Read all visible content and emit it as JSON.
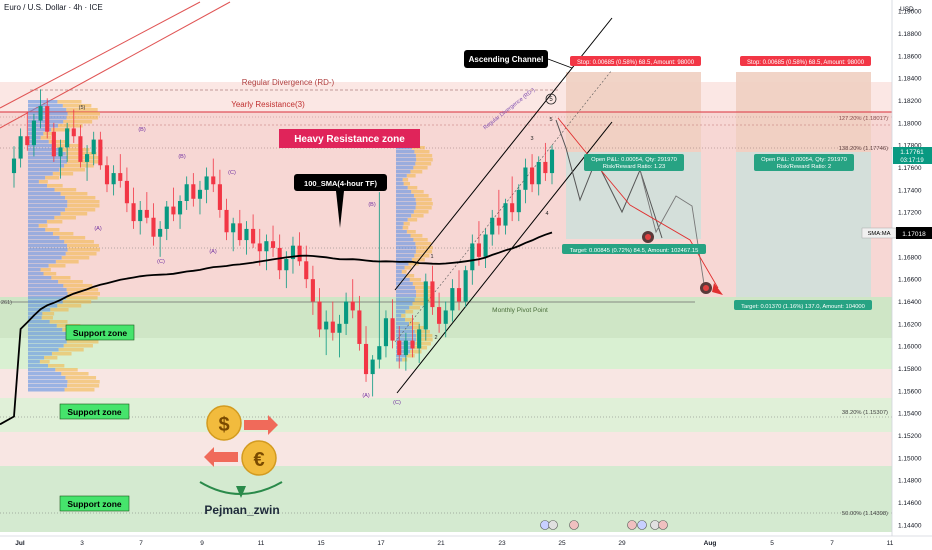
{
  "header": {
    "title": "Euro / U.S. Dollar · 4h · ICE"
  },
  "axis": {
    "currency": "USD",
    "y_ticks": [
      1.19,
      1.188,
      1.186,
      1.184,
      1.182,
      1.18,
      1.178,
      1.176,
      1.174,
      1.172,
      1.17,
      1.168,
      1.166,
      1.164,
      1.162,
      1.16,
      1.158,
      1.156,
      1.154,
      1.152,
      1.15,
      1.148,
      1.146,
      1.144
    ],
    "x_ticks": [
      {
        "label": "Jul",
        "bold": true
      },
      {
        "label": "3",
        "bold": false
      },
      {
        "label": "7",
        "bold": false
      },
      {
        "label": "9",
        "bold": false
      },
      {
        "label": "11",
        "bold": false
      },
      {
        "label": "15",
        "bold": false
      },
      {
        "label": "17",
        "bold": false
      },
      {
        "label": "21",
        "bold": false
      },
      {
        "label": "23",
        "bold": false
      },
      {
        "label": "25",
        "bold": false
      },
      {
        "label": "29",
        "bold": false
      },
      {
        "label": "Aug",
        "bold": true
      },
      {
        "label": "5",
        "bold": false
      },
      {
        "label": "7",
        "bold": false
      },
      {
        "label": "11",
        "bold": false
      }
    ],
    "price_badge": "1.17761",
    "countdown": "03:17:19",
    "sma_label": "SMA:MA",
    "sma_value": "1.17018"
  },
  "chart_data": {
    "type": "candlestick",
    "title": "Euro / U.S. Dollar · 4h · ICE",
    "ylabel": "USD",
    "ylim": [
      1.143,
      1.191
    ],
    "x_range": [
      "Jul 1",
      "Aug 11"
    ],
    "last_price": 1.17761,
    "sma_100_last": 1.17018,
    "candles_ohlc": [
      [
        1.1755,
        1.1779,
        1.1742,
        1.1768
      ],
      [
        1.1768,
        1.1795,
        1.176,
        1.1788
      ],
      [
        1.1788,
        1.181,
        1.1775,
        1.178
      ],
      [
        1.178,
        1.1808,
        1.177,
        1.1802
      ],
      [
        1.1802,
        1.183,
        1.1795,
        1.1815
      ],
      [
        1.1815,
        1.1822,
        1.1786,
        1.1792
      ],
      [
        1.1792,
        1.18,
        1.1765,
        1.177
      ],
      [
        1.177,
        1.1785,
        1.175,
        1.1778
      ],
      [
        1.1778,
        1.18,
        1.1765,
        1.1795
      ],
      [
        1.1795,
        1.1812,
        1.1782,
        1.1788
      ],
      [
        1.1788,
        1.1798,
        1.176,
        1.1765
      ],
      [
        1.1765,
        1.178,
        1.1748,
        1.1772
      ],
      [
        1.1772,
        1.1792,
        1.1762,
        1.1785
      ],
      [
        1.1785,
        1.1792,
        1.1758,
        1.1762
      ],
      [
        1.1762,
        1.177,
        1.1738,
        1.1745
      ],
      [
        1.1745,
        1.1762,
        1.1735,
        1.1755
      ],
      [
        1.1755,
        1.1772,
        1.1742,
        1.1748
      ],
      [
        1.1748,
        1.176,
        1.172,
        1.1728
      ],
      [
        1.1728,
        1.1742,
        1.1705,
        1.1712
      ],
      [
        1.1712,
        1.173,
        1.17,
        1.1722
      ],
      [
        1.1722,
        1.1738,
        1.171,
        1.1715
      ],
      [
        1.1715,
        1.1728,
        1.169,
        1.1698
      ],
      [
        1.1698,
        1.1712,
        1.168,
        1.1705
      ],
      [
        1.1705,
        1.173,
        1.1695,
        1.1725
      ],
      [
        1.1725,
        1.1742,
        1.1712,
        1.1718
      ],
      [
        1.1718,
        1.1735,
        1.1705,
        1.173
      ],
      [
        1.173,
        1.1752,
        1.1722,
        1.1745
      ],
      [
        1.1745,
        1.1755,
        1.1725,
        1.1732
      ],
      [
        1.1732,
        1.1748,
        1.1718,
        1.174
      ],
      [
        1.174,
        1.176,
        1.1728,
        1.1752
      ],
      [
        1.1752,
        1.1768,
        1.1738,
        1.1745
      ],
      [
        1.1745,
        1.1758,
        1.1715,
        1.1722
      ],
      [
        1.1722,
        1.1732,
        1.1695,
        1.1702
      ],
      [
        1.1702,
        1.1715,
        1.1685,
        1.171
      ],
      [
        1.171,
        1.1722,
        1.169,
        1.1695
      ],
      [
        1.1695,
        1.1712,
        1.1682,
        1.1705
      ],
      [
        1.1705,
        1.1718,
        1.1688,
        1.1692
      ],
      [
        1.1692,
        1.1705,
        1.1672,
        1.1685
      ],
      [
        1.1685,
        1.17,
        1.1668,
        1.1694
      ],
      [
        1.1694,
        1.1708,
        1.168,
        1.1688
      ],
      [
        1.1688,
        1.17,
        1.166,
        1.1668
      ],
      [
        1.1668,
        1.1685,
        1.1652,
        1.1678
      ],
      [
        1.1678,
        1.1698,
        1.1665,
        1.169
      ],
      [
        1.169,
        1.1702,
        1.1672,
        1.1676
      ],
      [
        1.1676,
        1.169,
        1.1652,
        1.166
      ],
      [
        1.166,
        1.1672,
        1.1628,
        1.164
      ],
      [
        1.164,
        1.1652,
        1.1608,
        1.1615
      ],
      [
        1.1615,
        1.1632,
        1.1592,
        1.1622
      ],
      [
        1.1622,
        1.164,
        1.1605,
        1.1612
      ],
      [
        1.1612,
        1.1628,
        1.159,
        1.162
      ],
      [
        1.162,
        1.1648,
        1.161,
        1.164
      ],
      [
        1.164,
        1.166,
        1.1625,
        1.1632
      ],
      [
        1.1632,
        1.1645,
        1.1596,
        1.1602
      ],
      [
        1.1602,
        1.1618,
        1.1568,
        1.1575
      ],
      [
        1.1575,
        1.1592,
        1.1555,
        1.1588
      ],
      [
        1.1588,
        1.1738,
        1.158,
        1.16
      ],
      [
        1.16,
        1.1632,
        1.159,
        1.1625
      ],
      [
        1.1625,
        1.1642,
        1.1598,
        1.1605
      ],
      [
        1.1605,
        1.1618,
        1.158,
        1.1592
      ],
      [
        1.1592,
        1.1612,
        1.1578,
        1.1605
      ],
      [
        1.1605,
        1.1628,
        1.159,
        1.1598
      ],
      [
        1.1598,
        1.162,
        1.1585,
        1.1615
      ],
      [
        1.1615,
        1.1665,
        1.1605,
        1.1658
      ],
      [
        1.1658,
        1.1672,
        1.1628,
        1.1635
      ],
      [
        1.1635,
        1.1648,
        1.1612,
        1.162
      ],
      [
        1.162,
        1.164,
        1.1608,
        1.1632
      ],
      [
        1.1632,
        1.166,
        1.1622,
        1.1652
      ],
      [
        1.1652,
        1.1668,
        1.1632,
        1.164
      ],
      [
        1.164,
        1.1672,
        1.1635,
        1.1668
      ],
      [
        1.1668,
        1.17,
        1.1655,
        1.1692
      ],
      [
        1.1692,
        1.1712,
        1.1672,
        1.168
      ],
      [
        1.168,
        1.1705,
        1.167,
        1.17
      ],
      [
        1.17,
        1.1722,
        1.169,
        1.1715
      ],
      [
        1.1715,
        1.174,
        1.17,
        1.1708
      ],
      [
        1.1708,
        1.1732,
        1.17,
        1.1728
      ],
      [
        1.1728,
        1.1752,
        1.1712,
        1.172
      ],
      [
        1.172,
        1.1745,
        1.1712,
        1.174
      ],
      [
        1.174,
        1.1768,
        1.1728,
        1.176
      ],
      [
        1.176,
        1.1772,
        1.1738,
        1.1745
      ],
      [
        1.1745,
        1.177,
        1.1735,
        1.1765
      ],
      [
        1.1765,
        1.1782,
        1.1748,
        1.1755
      ],
      [
        1.1755,
        1.178,
        1.1745,
        1.1776
      ]
    ]
  },
  "annotations": {
    "ascending_channel": "Ascending Channel",
    "regular_divergence": "Regular Divergence (RD-)",
    "yearly_resistance": "Yearly Resistance(3)",
    "heavy_resistance": "Heavy Resistance zone",
    "sma_callout": "100_SMA(4-hour TF)",
    "monthly_pivot": "Monthly Pivot Point",
    "support_zone": "Support zone",
    "fib_1272": "127.20% (1.18017)",
    "fib_1382": "138.20% (1.17746)",
    "fib_382": "38.20% (1.15307)",
    "fib_500": "50.00% (1.14398)",
    "left_edge_label": "261)",
    "rd_small": "Regular Divergence (RD-)",
    "wave_labels": [
      "(5)",
      "(B)",
      "(A)",
      "(C)",
      "(B)",
      "(A)",
      "(C)",
      "(B)",
      "(A)",
      "(C)",
      "1",
      "2",
      "3",
      "4",
      "5"
    ],
    "author": "Pejman_zwin",
    "dollar_symbol": "$",
    "euro_symbol": "€"
  },
  "trade_boxes": [
    {
      "stop": "Stop: 0.00685 (0.58%) 68.5, Amount: 98000",
      "open": "Open P&L: 0.00054, Qty: 291970",
      "ratio": "Risk/Reward Ratio: 1.23",
      "target": "Target: 0.00845 (0.72%) 84.5, Amount: 102467.15"
    },
    {
      "stop": "Stop: 0.00685 (0.58%) 68.5, Amount: 98000",
      "open": "Open P&L: 0.00054, Qty: 291970",
      "ratio": "Risk/Reward Ratio: 2",
      "target": "Target: 0.01370 (1.16%) 137.0, Amount: 104000"
    }
  ],
  "colors": {
    "bull": "#089981",
    "bear": "#f23645",
    "sma": "#000000",
    "resistance_zone": "#f4cccc",
    "support_zone": "#d4ead0",
    "stop_box": "#efd2c8",
    "target_box": "#d5e5e0",
    "label_red": "#f23645",
    "label_green": "#27a383"
  }
}
